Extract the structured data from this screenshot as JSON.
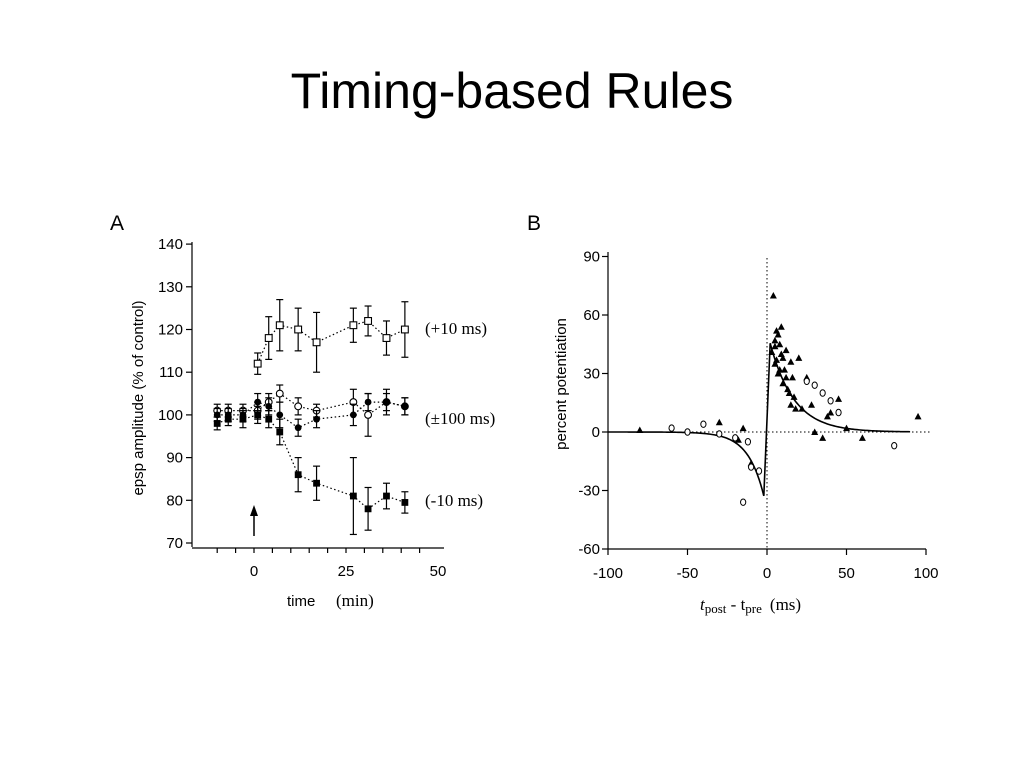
{
  "slide": {
    "title": "Timing-based Rules"
  },
  "chart_data": [
    {
      "panel": "A",
      "type": "scatter",
      "xlabel": "time",
      "xunit": "(min)",
      "ylabel": "epsp amplitude (% of control)",
      "xlim": [
        -12,
        50
      ],
      "ylim": [
        70,
        140
      ],
      "xticks": [
        0,
        25,
        50
      ],
      "yticks": [
        70,
        80,
        90,
        100,
        110,
        120,
        130,
        140
      ],
      "arrow_at_x": 0,
      "series": [
        {
          "name": "(+10 ms)",
          "marker": "open-square",
          "x": [
            1,
            4,
            7,
            12,
            17,
            27,
            31,
            36,
            41
          ],
          "y": [
            112,
            118,
            121,
            120,
            117,
            121,
            122,
            118,
            120
          ],
          "err": [
            2.5,
            5,
            6,
            5,
            7,
            4,
            3.5,
            4,
            6.5
          ]
        },
        {
          "name": "(±100 ms)",
          "marker": "open-circle",
          "x": [
            -10,
            -7,
            -3,
            1,
            4,
            7,
            12,
            17,
            27,
            31,
            36,
            41
          ],
          "y": [
            101,
            101,
            101,
            101,
            103,
            105,
            102,
            101,
            103,
            100,
            103,
            102
          ],
          "err": [
            1.5,
            1.5,
            1.5,
            2,
            2,
            2,
            2,
            1.5,
            3,
            5,
            3,
            2
          ]
        },
        {
          "name": "",
          "marker": "filled-circle",
          "x": [
            -10,
            -7,
            -3,
            1,
            4,
            7,
            12,
            17,
            27,
            31,
            36,
            41
          ],
          "y": [
            100,
            100,
            100,
            103,
            102,
            100,
            97,
            99,
            100,
            103,
            103,
            102
          ],
          "err": [
            1.5,
            1.5,
            1.5,
            2,
            2,
            3,
            2,
            2,
            2.5,
            2,
            2,
            2
          ]
        },
        {
          "name": "(-10 ms)",
          "marker": "filled-square",
          "x": [
            -10,
            -7,
            -3,
            1,
            4,
            7,
            12,
            17,
            27,
            31,
            36,
            41
          ],
          "y": [
            98,
            99,
            99,
            100,
            99,
            96,
            86,
            84,
            81,
            78,
            81,
            79.5
          ],
          "err": [
            1.5,
            1.5,
            2,
            2,
            2,
            3,
            4,
            4,
            9,
            5,
            3,
            2.5
          ]
        }
      ]
    },
    {
      "panel": "B",
      "type": "scatter",
      "xlabel_prefix": "t",
      "xlabel_sub1": "post",
      "xlabel_mid": " - t",
      "xlabel_sub2": "pre",
      "xunit": "(ms)",
      "ylabel": "percent potentiation",
      "xlim": [
        -100,
        100
      ],
      "ylim": [
        -60,
        90
      ],
      "xticks": [
        -100,
        -50,
        0,
        50,
        100
      ],
      "yticks": [
        -60,
        -30,
        0,
        30,
        60,
        90
      ],
      "series": [
        {
          "name": "",
          "marker": "filled-triangle",
          "x": [
            -80,
            -30,
            -18,
            -15,
            -10,
            3,
            4,
            5,
            5,
            5,
            6,
            6,
            7,
            7,
            8,
            8,
            9,
            9,
            10,
            10,
            11,
            12,
            12,
            13,
            14,
            15,
            15,
            16,
            17,
            18,
            20,
            22,
            25,
            28,
            30,
            35,
            38,
            40,
            45,
            50,
            60,
            95
          ],
          "y": [
            1,
            5,
            -4,
            2,
            -16,
            41,
            70,
            44,
            35,
            47,
            52,
            37,
            30,
            50,
            45,
            32,
            54,
            40,
            25,
            38,
            32,
            42,
            28,
            22,
            20,
            36,
            14,
            28,
            18,
            12,
            38,
            12,
            28,
            14,
            0,
            -3,
            8,
            10,
            17,
            2,
            -3,
            8
          ]
        },
        {
          "name": "",
          "marker": "open-circle",
          "x": [
            -60,
            -50,
            -40,
            -30,
            -20,
            -15,
            -12,
            -10,
            -5,
            25,
            30,
            35,
            40,
            45,
            80
          ],
          "y": [
            2,
            0,
            4,
            -1,
            -3,
            -36,
            -5,
            -18,
            -20,
            26,
            24,
            20,
            16,
            10,
            -7
          ]
        },
        {
          "name": "",
          "type": "fit-curve",
          "tau_pos": 15,
          "tau_neg": 10,
          "a_pos": 52,
          "a_neg": -40
        }
      ]
    }
  ]
}
